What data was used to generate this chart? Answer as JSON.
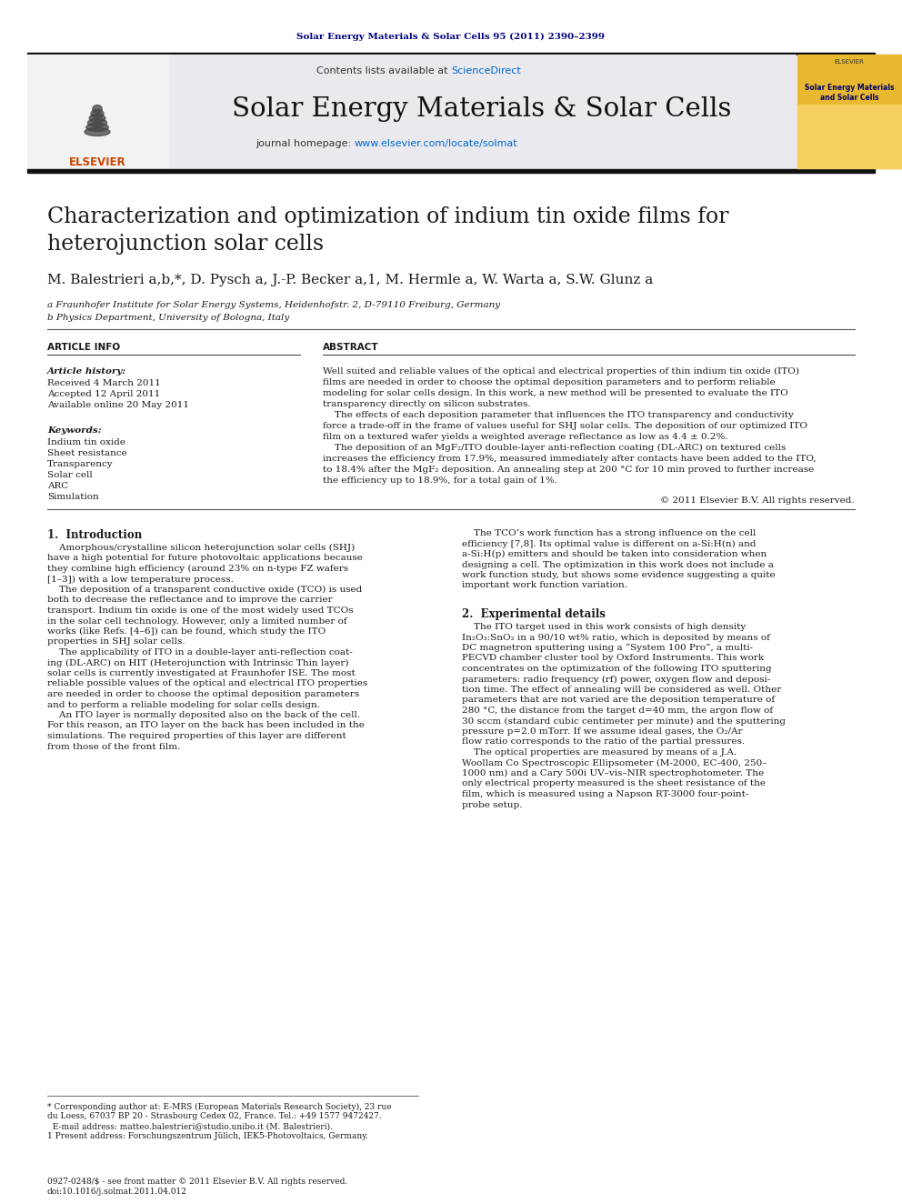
{
  "journal_line": "Solar Energy Materials & Solar Cells 95 (2011) 2390–2399",
  "contents_line": "Contents lists available at ScienceDirect",
  "journal_name": "Solar Energy Materials & Solar Cells",
  "journal_homepage": "journal homepage: www.elsevier.com/locate/solmat",
  "paper_title_1": "Characterization and optimization of indium tin oxide films for",
  "paper_title_2": "heterojunction solar cells",
  "authors_line": "M. Balestrieri a,b,*, D. Pysch a, J.-P. Becker a,1, M. Hermle a, W. Warta a, S.W. Glunz a",
  "affil_a": "a Fraunhofer Institute for Solar Energy Systems, Heidenhofstr. 2, D-79110 Freiburg, Germany",
  "affil_b": "b Physics Department, University of Bologna, Italy",
  "article_info_header": "ARTICLE INFO",
  "abstract_header": "ABSTRACT",
  "article_history_label": "Article history:",
  "received": "Received 4 March 2011",
  "accepted": "Accepted 12 April 2011",
  "available": "Available online 20 May 2011",
  "keywords_label": "Keywords:",
  "keywords": [
    "Indium tin oxide",
    "Sheet resistance",
    "Transparency",
    "Solar cell",
    "ARC",
    "Simulation"
  ],
  "abs_lines": [
    "Well suited and reliable values of the optical and electrical properties of thin indium tin oxide (ITO)",
    "films are needed in order to choose the optimal deposition parameters and to perform reliable",
    "modeling for solar cells design. In this work, a new method will be presented to evaluate the ITO",
    "transparency directly on silicon substrates.",
    "    The effects of each deposition parameter that influences the ITO transparency and conductivity",
    "force a trade-off in the frame of values useful for SHJ solar cells. The deposition of our optimized ITO",
    "film on a textured wafer yields a weighted average reflectance as low as 4.4 ± 0.2%.",
    "    The deposition of an MgF₂/ITO double-layer anti-reflection coating (DL-ARC) on textured cells",
    "increases the efficiency from 17.9%, measured immediately after contacts have been added to the ITO,",
    "to 18.4% after the MgF₂ deposition. An annealing step at 200 °C for 10 min proved to further increase",
    "the efficiency up to 18.9%, for a total gain of 1%."
  ],
  "copyright": "© 2011 Elsevier B.V. All rights reserved.",
  "intro_header": "1.  Introduction",
  "intro_lines": [
    "    Amorphous/crystalline silicon heterojunction solar cells (SHJ)",
    "have a high potential for future photovoltaic applications because",
    "they combine high efficiency (around 23% on n-type FZ wafers",
    "[1–3]) with a low temperature process.",
    "    The deposition of a transparent conductive oxide (TCO) is used",
    "both to decrease the reflectance and to improve the carrier",
    "transport. Indium tin oxide is one of the most widely used TCOs",
    "in the solar cell technology. However, only a limited number of",
    "works (like Refs. [4–6]) can be found, which study the ITO",
    "properties in SHJ solar cells.",
    "    The applicability of ITO in a double-layer anti-reflection coat-",
    "ing (DL-ARC) on HIT (Heterojunction with Intrinsic Thin layer)",
    "solar cells is currently investigated at Fraunhofer ISE. The most",
    "reliable possible values of the optical and electrical ITO properties",
    "are needed in order to choose the optimal deposition parameters",
    "and to perform a reliable modeling for solar cells design.",
    "    An ITO layer is normally deposited also on the back of the cell.",
    "For this reason, an ITO layer on the back has been included in the",
    "simulations. The required properties of this layer are different",
    "from those of the front film."
  ],
  "right_col_lines": [
    "    The TCO’s work function has a strong influence on the cell",
    "efficiency [7,8]. Its optimal value is different on a-Si:H(n) and",
    "a-Si:H(p) emitters and should be taken into consideration when",
    "designing a cell. The optimization in this work does not include a",
    "work function study, but shows some evidence suggesting a quite",
    "important work function variation."
  ],
  "exp_header": "2.  Experimental details",
  "exp_lines": [
    "    The ITO target used in this work consists of high density",
    "In₂O₃:SnO₂ in a 90/10 wt% ratio, which is deposited by means of",
    "DC magnetron sputtering using a “System 100 Pro”, a multi-",
    "PECVD chamber cluster tool by Oxford Instruments. This work",
    "concentrates on the optimization of the following ITO sputtering",
    "parameters: radio frequency (rf) power, oxygen flow and deposi-",
    "tion time. The effect of annealing will be considered as well. Other",
    "parameters that are not varied are the deposition temperature of",
    "280 °C, the distance from the target d=40 mm, the argon flow of",
    "30 sccm (standard cubic centimeter per minute) and the sputtering",
    "pressure p=2.0 mTorr. If we assume ideal gases, the O₂/Ar",
    "flow ratio corresponds to the ratio of the partial pressures.",
    "    The optical properties are measured by means of a J.A.",
    "Woollam Co Spectroscopic Ellipsometer (M-2000, EC-400, 250–",
    "1000 nm) and a Cary 500i UV–vis–NIR spectrophotometer. The",
    "only electrical property measured is the sheet resistance of the",
    "film, which is measured using a Napson RT-3000 four-point-",
    "probe setup."
  ],
  "footnote_lines": [
    "* Corresponding author at: E-MRS (European Materials Research Society), 23 rue",
    "du Loess, 67037 BP 20 - Strasbourg Cedex 02, France. Tel.: +49 1577 9472427.",
    "  E-mail address: matteo.balestrieri@studio.unibo.it (M. Balestrieri).",
    "1 Present address: Forschungszentrum Jülich, IEK5-Photovoltaics, Germany."
  ],
  "issn_line": "0927-0248/$ - see front matter © 2011 Elsevier B.V. All rights reserved.",
  "doi_line": "doi:10.1016/j.solmat.2011.04.012",
  "bg_color": "#ffffff",
  "journal_ref_color": "#000080",
  "link_color": "#0066cc",
  "elsevier_orange": "#cc4400",
  "text_color": "#1a1a1a",
  "line_color": "#555555"
}
